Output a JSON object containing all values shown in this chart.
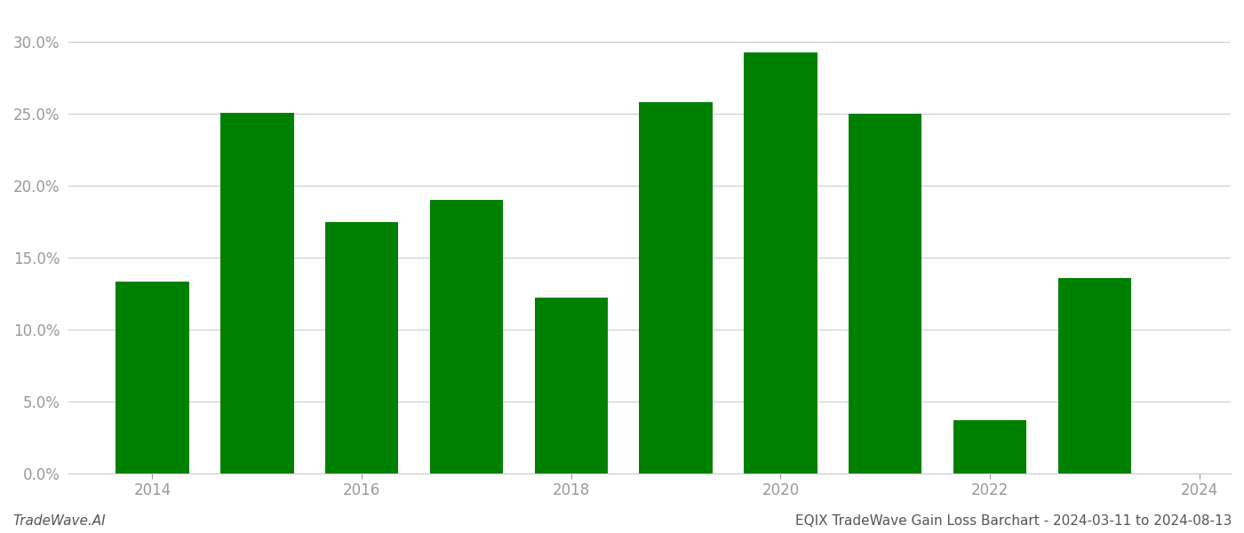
{
  "years": [
    2014,
    2015,
    2016,
    2017,
    2018,
    2019,
    2020,
    2021,
    2022,
    2023
  ],
  "values": [
    0.133,
    0.251,
    0.175,
    0.19,
    0.122,
    0.258,
    0.293,
    0.25,
    0.037,
    0.136
  ],
  "bar_color": "#008000",
  "background_color": "#ffffff",
  "ylim": [
    0,
    0.32
  ],
  "yticks": [
    0.0,
    0.05,
    0.1,
    0.15,
    0.2,
    0.25,
    0.3
  ],
  "xtick_positions": [
    2014,
    2016,
    2018,
    2020,
    2022,
    2024
  ],
  "xtick_labels": [
    "2014",
    "2016",
    "2018",
    "2020",
    "2022",
    "2024"
  ],
  "xlabel": "",
  "ylabel": "",
  "footer_left": "TradeWave.AI",
  "footer_right": "EQIX TradeWave Gain Loss Barchart - 2024-03-11 to 2024-08-13",
  "grid_color": "#cccccc",
  "tick_color": "#999999",
  "spine_color": "#cccccc",
  "footer_fontsize": 11,
  "bar_width": 0.7
}
